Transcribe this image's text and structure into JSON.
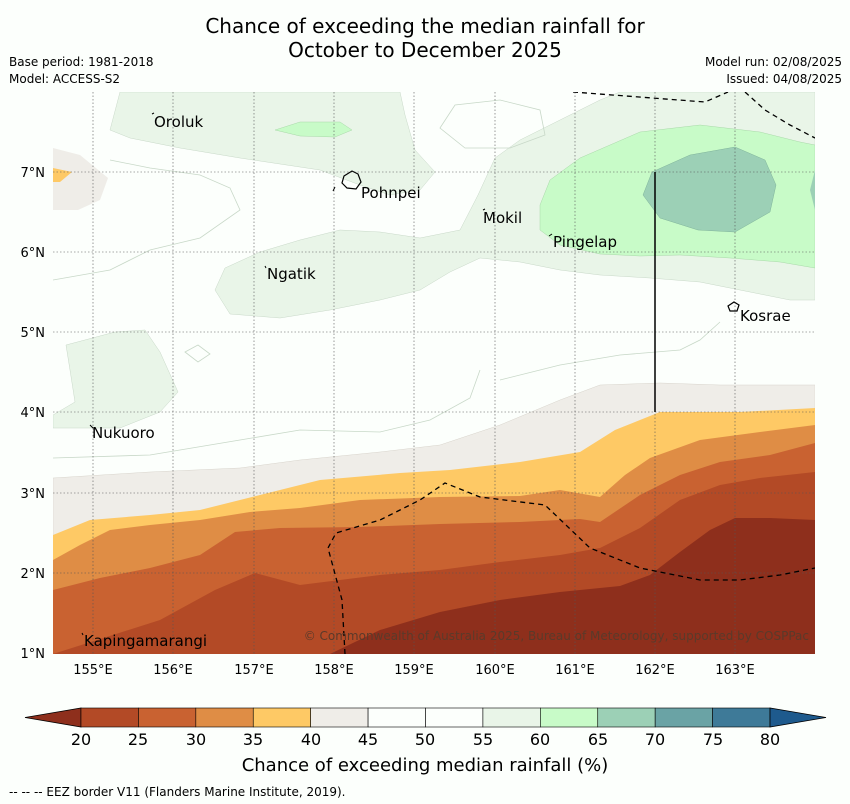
{
  "title_line1": "Chance of exceeding the median rainfall for",
  "title_line2": "October to December 2025",
  "meta_left": [
    "Base period: 1981-2018",
    "Model: ACCESS-S2"
  ],
  "meta_right": [
    "Model run: 02/08/2025",
    "Issued: 04/08/2025"
  ],
  "lon_ticks": [
    "155°E",
    "156°E",
    "157°E",
    "158°E",
    "159°E",
    "160°E",
    "161°E",
    "162°E",
    "163°E"
  ],
  "lat_ticks": [
    "7°N",
    "6°N",
    "5°N",
    "4°N",
    "3°N",
    "2°N",
    "1°N"
  ],
  "places": [
    {
      "name": "Oroluk"
    },
    {
      "name": "Pohnpei"
    },
    {
      "name": "Mokil"
    },
    {
      "name": "Pingelap"
    },
    {
      "name": "Ngatik"
    },
    {
      "name": "Kosrae"
    },
    {
      "name": "Nukuoro"
    },
    {
      "name": "Kapingamarangi"
    }
  ],
  "copyright": "© Commonwealth of Australia 2025, Bureau of Meteorology, supported by COSPPac",
  "colorbar": {
    "ticks": [
      "20",
      "25",
      "30",
      "35",
      "40",
      "45",
      "50",
      "55",
      "60",
      "65",
      "70",
      "75",
      "80"
    ],
    "colors": [
      "#b34a26",
      "#c96231",
      "#df8d45",
      "#fec965",
      "#efede8",
      "#fcfffc",
      "#fcfffc",
      "#e9f5e8",
      "#c8fbc8",
      "#9cd0b6",
      "#6aa3a5",
      "#3e7a98"
    ],
    "under_color": "#8e2f1c",
    "over_color": "#1e5a8d",
    "label": "Chance of exceeding median rainfall (%)"
  },
  "footnote": "--  --  -- EEZ border V11 (Flanders Marine Institute, 2019)."
}
